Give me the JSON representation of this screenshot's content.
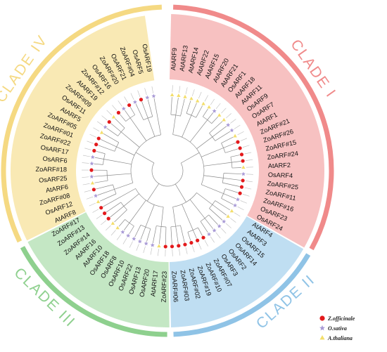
{
  "clades": [
    {
      "id": "I",
      "label": "CLADE I",
      "color": "#f08a8a",
      "band": "#f7c1c1"
    },
    {
      "id": "II",
      "label": "CLADE II",
      "color": "#8fc3e6",
      "band": "#bfdef2"
    },
    {
      "id": "III",
      "label": "CLADE III",
      "color": "#8ed08e",
      "band": "#c4e7c4"
    },
    {
      "id": "IV",
      "label": "CLADE IV",
      "color": "#f5d982",
      "band": "#f9e9b4"
    }
  ],
  "leaves": [
    {
      "name": "AtARF9",
      "species": "at",
      "clade": "I"
    },
    {
      "name": "AtARF13",
      "species": "at",
      "clade": "I"
    },
    {
      "name": "AtARF14",
      "species": "at",
      "clade": "I"
    },
    {
      "name": "AtARF22",
      "species": "at",
      "clade": "I"
    },
    {
      "name": "AtARF15",
      "species": "at",
      "clade": "I"
    },
    {
      "name": "AtARF20",
      "species": "at",
      "clade": "I"
    },
    {
      "name": "AtARF21",
      "species": "at",
      "clade": "I"
    },
    {
      "name": "OsARF1",
      "species": "os",
      "clade": "I"
    },
    {
      "name": "AtARF18",
      "species": "at",
      "clade": "I"
    },
    {
      "name": "AtARF11",
      "species": "at",
      "clade": "I"
    },
    {
      "name": "OsARF9",
      "species": "os",
      "clade": "I"
    },
    {
      "name": "OsARF7",
      "species": "os",
      "clade": "I"
    },
    {
      "name": "AtARF1",
      "species": "at",
      "clade": "I"
    },
    {
      "name": "ZoARF#21",
      "species": "zo",
      "clade": "I"
    },
    {
      "name": "ZoARF#26",
      "species": "zo",
      "clade": "I"
    },
    {
      "name": "ZoARF#15",
      "species": "zo",
      "clade": "I"
    },
    {
      "name": "ZoARF#24",
      "species": "zo",
      "clade": "I"
    },
    {
      "name": "AtARF2",
      "species": "at",
      "clade": "I"
    },
    {
      "name": "OsARF4",
      "species": "os",
      "clade": "I"
    },
    {
      "name": "ZoARF#25",
      "species": "zo",
      "clade": "I"
    },
    {
      "name": "ZoARF#11",
      "species": "zo",
      "clade": "I"
    },
    {
      "name": "ZoARF#16",
      "species": "zo",
      "clade": "I"
    },
    {
      "name": "OsARF23",
      "species": "os",
      "clade": "I"
    },
    {
      "name": "OsARF24",
      "species": "os",
      "clade": "I"
    },
    {
      "name": "AtARF4",
      "species": "at",
      "clade": "II"
    },
    {
      "name": "AtARF3",
      "species": "at",
      "clade": "II"
    },
    {
      "name": "OsARF15",
      "species": "os",
      "clade": "II"
    },
    {
      "name": "OsARF14",
      "species": "os",
      "clade": "II"
    },
    {
      "name": "OsARF2",
      "species": "os",
      "clade": "II"
    },
    {
      "name": "OsARF3",
      "species": "os",
      "clade": "II"
    },
    {
      "name": "ZoARF#07",
      "species": "zo",
      "clade": "II"
    },
    {
      "name": "ZoARF#10",
      "species": "zo",
      "clade": "II"
    },
    {
      "name": "ZoARF#19",
      "species": "zo",
      "clade": "II"
    },
    {
      "name": "ZoARF#02",
      "species": "zo",
      "clade": "II"
    },
    {
      "name": "ZoARF#03",
      "species": "zo",
      "clade": "II"
    },
    {
      "name": "ZoARF#06",
      "species": "zo",
      "clade": "II"
    },
    {
      "name": "ZoARF#23",
      "species": "zo",
      "clade": "III"
    },
    {
      "name": "AtARF17",
      "species": "at",
      "clade": "III"
    },
    {
      "name": "OsARF20",
      "species": "os",
      "clade": "III"
    },
    {
      "name": "OsARF13",
      "species": "os",
      "clade": "III"
    },
    {
      "name": "OsARF22",
      "species": "os",
      "clade": "III"
    },
    {
      "name": "OsARF10",
      "species": "os",
      "clade": "III"
    },
    {
      "name": "OsARF8",
      "species": "os",
      "clade": "III"
    },
    {
      "name": "OsARF18",
      "species": "os",
      "clade": "III"
    },
    {
      "name": "AtARF10",
      "species": "at",
      "clade": "III"
    },
    {
      "name": "AtARF16",
      "species": "at",
      "clade": "III"
    },
    {
      "name": "ZoARF#14",
      "species": "zo",
      "clade": "III"
    },
    {
      "name": "ZoARF#13",
      "species": "zo",
      "clade": "III"
    },
    {
      "name": "ZoARF#17",
      "species": "zo",
      "clade": "III"
    },
    {
      "name": "AtARF8",
      "species": "at",
      "clade": "IV"
    },
    {
      "name": "OsARF12",
      "species": "os",
      "clade": "IV"
    },
    {
      "name": "ZoARF#08",
      "species": "zo",
      "clade": "IV"
    },
    {
      "name": "AtARF6",
      "species": "at",
      "clade": "IV"
    },
    {
      "name": "OsARF25",
      "species": "os",
      "clade": "IV"
    },
    {
      "name": "ZoARF#18",
      "species": "zo",
      "clade": "IV"
    },
    {
      "name": "OsARF6",
      "species": "os",
      "clade": "IV"
    },
    {
      "name": "OsARF17",
      "species": "os",
      "clade": "IV"
    },
    {
      "name": "ZoARF#22",
      "species": "zo",
      "clade": "IV"
    },
    {
      "name": "ZoARF#01",
      "species": "zo",
      "clade": "IV"
    },
    {
      "name": "ZoARF#05",
      "species": "zo",
      "clade": "IV"
    },
    {
      "name": "AtARF5",
      "species": "at",
      "clade": "IV"
    },
    {
      "name": "OsARF11",
      "species": "os",
      "clade": "IV"
    },
    {
      "name": "ZoARF#09",
      "species": "zo",
      "clade": "IV"
    },
    {
      "name": "AtARF19",
      "species": "at",
      "clade": "IV"
    },
    {
      "name": "ZoARF#12",
      "species": "zo",
      "clade": "IV"
    },
    {
      "name": "OsARF16",
      "species": "os",
      "clade": "IV"
    },
    {
      "name": "ZoARF#20",
      "species": "zo",
      "clade": "IV"
    },
    {
      "name": "OsARF21",
      "species": "os",
      "clade": "IV"
    },
    {
      "name": "ZoARF#04",
      "species": "zo",
      "clade": "IV"
    },
    {
      "name": "OsARF5",
      "species": "os",
      "clade": "IV"
    },
    {
      "name": "OsARF19",
      "species": "os",
      "clade": "IV"
    }
  ],
  "species_markers": {
    "zo": {
      "color": "#e31a1c",
      "shape": "circle"
    },
    "os": {
      "color": "#a99bd6",
      "shape": "star"
    },
    "at": {
      "color": "#f3de6b",
      "shape": "triangle"
    }
  },
  "legend": [
    {
      "species": "zo",
      "label": "Z.officinale"
    },
    {
      "species": "os",
      "label": "O.sativa"
    },
    {
      "species": "at",
      "label": "A.thaliana"
    }
  ]
}
